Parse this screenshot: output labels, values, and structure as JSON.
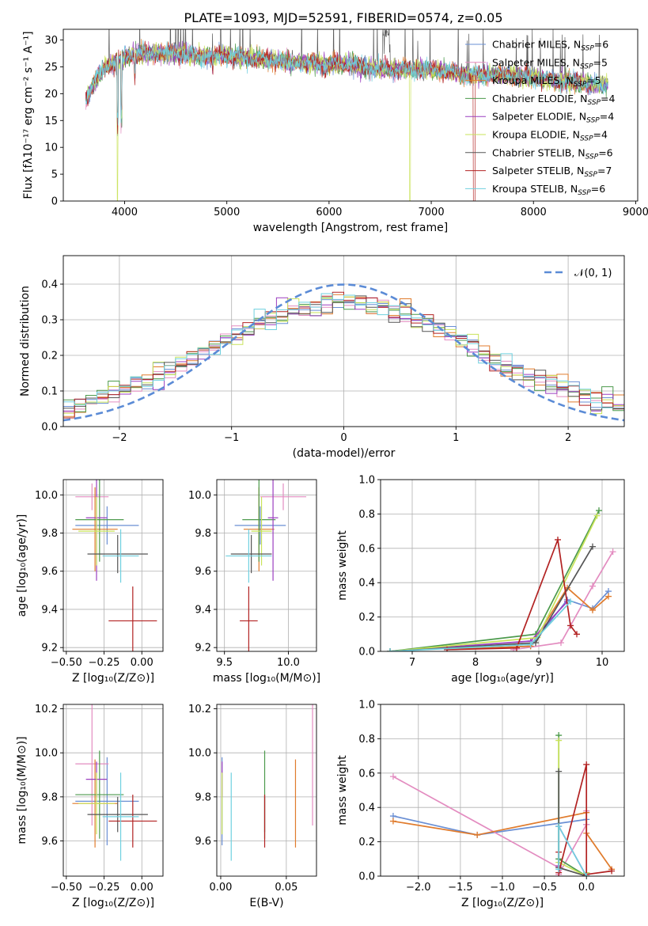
{
  "colors": {
    "chabrier_miles": "#6a8fd4",
    "salpeter_miles": "#e38cc0",
    "kroupa_miles": "#e07b2c",
    "chabrier_elodie": "#4c9a4c",
    "salpeter_elodie": "#9b3fc0",
    "kroupa_elodie": "#c9e35a",
    "chabrier_stelib": "#555555",
    "salpeter_stelib": "#b22222",
    "kroupa_stelib": "#6fd0df",
    "gauss": "#5b8bd6"
  },
  "chart_data": [
    {
      "id": "spectrum",
      "type": "line",
      "title": "PLATE=1093, MJD=52591, FIBERID=0574, z=0.05",
      "xlabel": "wavelength [Angstrom, rest frame]",
      "ylabel": "Flux [fλ10⁻¹⁷ erg cm⁻² s⁻¹ A⁻¹]",
      "xlim": [
        3400,
        9020
      ],
      "ylim": [
        0,
        32
      ],
      "xticks": [
        4000,
        5000,
        6000,
        7000,
        8000,
        9000
      ],
      "yticks": [
        0,
        5,
        10,
        15,
        20,
        25,
        30
      ],
      "legend_position": "upper right",
      "legend": [
        "Chabrier MILES, N_SSP=6",
        "Salpeter MILES, N_SSP=5",
        "Kroupa MILES, N_SSP=5",
        "Chabrier ELODIE, N_SSP=4",
        "Salpeter ELODIE, N_SSP=4",
        "Kroupa ELODIE, N_SSP=4",
        "Chabrier STELIB, N_SSP=6",
        "Salpeter STELIB, N_SSP=7",
        "Kroupa STELIB, N_SSP=6"
      ],
      "continuum": {
        "x": [
          3620,
          3700,
          3800,
          3900,
          4000,
          4200,
          4500,
          4800,
          5000,
          5300,
          5600,
          5900,
          6200,
          6500,
          6800,
          7000,
          7200,
          7400,
          7600,
          7800,
          8000,
          8200,
          8500,
          8800,
          9000
        ],
        "y": [
          19,
          22,
          25,
          25.5,
          27,
          27.5,
          27.5,
          27,
          27,
          26.5,
          26,
          25.5,
          25.5,
          24.5,
          24.5,
          24.5,
          24,
          23.5,
          23.5,
          23.5,
          23,
          22.5,
          22,
          21.5,
          21
        ]
      },
      "dips": [
        3933,
        3968,
        4101,
        4861,
        6563,
        6800,
        7420
      ]
    },
    {
      "id": "residuals",
      "type": "line",
      "xlabel": "(data-model)/error",
      "ylabel": "Normed distribution",
      "xlim": [
        -2.5,
        2.5
      ],
      "ylim": [
        0,
        0.48
      ],
      "xticks": [
        -2,
        -1,
        0,
        1,
        2
      ],
      "yticks": [
        0.0,
        0.1,
        0.2,
        0.3,
        0.4
      ],
      "legend_position": "upper right",
      "gauss_label": "𝒩(0, 1)",
      "bins": 50,
      "overlay": "N(0,1) probability density, dashed"
    },
    {
      "id": "age-vs-Z",
      "type": "scatter",
      "xlabel": "Z [log₁₀(Z/Z⊙)]",
      "ylabel": "age  [log₁₀(age/yr)]",
      "xlim": [
        -0.52,
        0.14
      ],
      "ylim": [
        9.18,
        10.08
      ],
      "xticks": [
        -0.5,
        -0.25,
        0.0
      ],
      "yticks": [
        9.2,
        9.4,
        9.6,
        9.8,
        10.0
      ],
      "points": [
        {
          "x": -0.23,
          "y": 9.84,
          "xerr": 0.21,
          "yerr": 0.1
        },
        {
          "x": -0.33,
          "y": 9.99,
          "xerr": 0.11,
          "yerr": 0.07
        },
        {
          "x": -0.31,
          "y": 9.82,
          "xerr": 0.15,
          "yerr": 0.22
        },
        {
          "x": -0.28,
          "y": 9.87,
          "xerr": 0.16,
          "yerr": 0.22
        },
        {
          "x": -0.3,
          "y": 9.88,
          "xerr": 0.07,
          "yerr": 0.33
        },
        {
          "x": -0.3,
          "y": 9.81,
          "xerr": 0.12,
          "yerr": 0.18
        },
        {
          "x": -0.16,
          "y": 9.69,
          "xerr": 0.2,
          "yerr": 0.1
        },
        {
          "x": -0.06,
          "y": 9.34,
          "xerr": 0.16,
          "yerr": 0.18
        },
        {
          "x": -0.14,
          "y": 9.68,
          "xerr": 0.12,
          "yerr": 0.14
        }
      ]
    },
    {
      "id": "age-vs-mass",
      "type": "scatter",
      "xlabel": "mass [log₁₀(M/M⊙)]",
      "ylabel": "",
      "xlim": [
        9.44,
        10.22
      ],
      "ylim": [
        9.18,
        10.08
      ],
      "xticks": [
        9.5,
        10.0
      ],
      "yticks": [
        9.2,
        9.4,
        9.6,
        9.8,
        10.0
      ],
      "points": [
        {
          "x": 9.78,
          "y": 9.84,
          "xerr": 0.2,
          "yerr": 0.1
        },
        {
          "x": 9.96,
          "y": 9.99,
          "xerr": 0.18,
          "yerr": 0.07
        },
        {
          "x": 9.77,
          "y": 9.82,
          "xerr": 0.12,
          "yerr": 0.22
        },
        {
          "x": 9.77,
          "y": 9.87,
          "xerr": 0.13,
          "yerr": 0.22
        },
        {
          "x": 9.88,
          "y": 9.88,
          "xerr": 0.04,
          "yerr": 0.33
        },
        {
          "x": 9.79,
          "y": 9.81,
          "xerr": 0.08,
          "yerr": 0.18
        },
        {
          "x": 9.71,
          "y": 9.69,
          "xerr": 0.16,
          "yerr": 0.1
        },
        {
          "x": 9.69,
          "y": 9.34,
          "xerr": 0.07,
          "yerr": 0.18
        },
        {
          "x": 9.69,
          "y": 9.68,
          "xerr": 0.18,
          "yerr": 0.14
        }
      ]
    },
    {
      "id": "weight-vs-age",
      "type": "line",
      "xlabel": "age  [log₁₀(age/yr)]",
      "ylabel": "mass weight",
      "xlim": [
        6.5,
        10.35
      ],
      "ylim": [
        0,
        1.0
      ],
      "xticks": [
        7,
        8,
        9,
        10
      ],
      "yticks": [
        0.0,
        0.2,
        0.4,
        0.6,
        0.8,
        1.0
      ],
      "series": [
        {
          "key": "chabrier_miles",
          "x": [
            7.55,
            8.87,
            9.45,
            9.85,
            10.1
          ],
          "y": [
            0.01,
            0.03,
            0.3,
            0.25,
            0.35
          ]
        },
        {
          "key": "salpeter_miles",
          "x": [
            8.6,
            9.35,
            9.85,
            10.17
          ],
          "y": [
            0.01,
            0.05,
            0.38,
            0.58
          ]
        },
        {
          "key": "kroupa_miles",
          "x": [
            7.55,
            8.87,
            9.45,
            9.85,
            10.1
          ],
          "y": [
            0.01,
            0.03,
            0.37,
            0.24,
            0.32
          ]
        },
        {
          "key": "chabrier_elodie",
          "x": [
            6.65,
            8.95,
            9.95
          ],
          "y": [
            0.0,
            0.1,
            0.82
          ]
        },
        {
          "key": "salpeter_elodie",
          "x": [
            6.65,
            8.87,
            9.45
          ],
          "y": [
            0.0,
            0.06,
            0.29
          ]
        },
        {
          "key": "kroupa_elodie",
          "x": [
            6.65,
            8.98,
            9.92
          ],
          "y": [
            0.0,
            0.08,
            0.79
          ]
        },
        {
          "key": "chabrier_stelib",
          "x": [
            6.65,
            8.95,
            9.85
          ],
          "y": [
            0.0,
            0.05,
            0.61
          ]
        },
        {
          "key": "salpeter_stelib",
          "x": [
            7.55,
            8.65,
            9.3,
            9.5,
            9.6
          ],
          "y": [
            0.01,
            0.02,
            0.65,
            0.15,
            0.1
          ]
        },
        {
          "key": "kroupa_stelib",
          "x": [
            6.65,
            8.87,
            9.5
          ],
          "y": [
            0.0,
            0.04,
            0.29
          ]
        }
      ]
    },
    {
      "id": "mass-vs-Z",
      "type": "scatter",
      "xlabel": "Z [log₁₀(Z/Z⊙)]",
      "ylabel": "mass [log₁₀(M/M⊙)]",
      "xlim": [
        -0.52,
        0.14
      ],
      "ylim": [
        9.44,
        10.22
      ],
      "xticks": [
        -0.5,
        -0.25,
        0.0
      ],
      "yticks": [
        9.6,
        9.8,
        10.0,
        10.2
      ],
      "points": [
        {
          "x": -0.23,
          "y": 9.78,
          "xerr": 0.21,
          "yerr": 0.2
        },
        {
          "x": -0.33,
          "y": 9.95,
          "xerr": 0.11,
          "yerr": 0.28
        },
        {
          "x": -0.31,
          "y": 9.77,
          "xerr": 0.15,
          "yerr": 0.2
        },
        {
          "x": -0.28,
          "y": 9.81,
          "xerr": 0.16,
          "yerr": 0.2
        },
        {
          "x": -0.3,
          "y": 9.88,
          "xerr": 0.07,
          "yerr": 0.08
        },
        {
          "x": -0.3,
          "y": 9.77,
          "xerr": 0.12,
          "yerr": 0.14
        },
        {
          "x": -0.16,
          "y": 9.72,
          "xerr": 0.2,
          "yerr": 0.08
        },
        {
          "x": -0.06,
          "y": 9.69,
          "xerr": 0.16,
          "yerr": 0.12
        },
        {
          "x": -0.14,
          "y": 9.71,
          "xerr": 0.12,
          "yerr": 0.2
        }
      ]
    },
    {
      "id": "mass-vs-ebv",
      "type": "scatter",
      "xlabel": "E(B-V)",
      "ylabel": "",
      "xlim": [
        -0.003,
        0.073
      ],
      "ylim": [
        9.44,
        10.22
      ],
      "xticks": [
        0.0,
        0.05
      ],
      "yticks": [
        9.6,
        9.8,
        10.0,
        10.2
      ],
      "points": [
        {
          "x": 0.001,
          "y": 9.78,
          "xerr": 0,
          "yerr": 0.2
        },
        {
          "x": 0.07,
          "y": 9.95,
          "xerr": 0,
          "yerr": 0.28
        },
        {
          "x": 0.057,
          "y": 9.77,
          "xerr": 0,
          "yerr": 0.2
        },
        {
          "x": 0.0335,
          "y": 9.81,
          "xerr": 0,
          "yerr": 0.2
        },
        {
          "x": 0.001,
          "y": 9.88,
          "xerr": 0,
          "yerr": 0.08
        },
        {
          "x": 0.001,
          "y": 9.77,
          "xerr": 0,
          "yerr": 0.14
        },
        {
          "x": 0.0335,
          "y": 9.72,
          "xerr": 0,
          "yerr": 0.08
        },
        {
          "x": 0.0335,
          "y": 9.69,
          "xerr": 0,
          "yerr": 0.12
        },
        {
          "x": 0.008,
          "y": 9.71,
          "xerr": 0,
          "yerr": 0.2
        }
      ]
    },
    {
      "id": "weight-vs-Z",
      "type": "line",
      "xlabel": "Z [log₁₀(Z/Z⊙)]",
      "ylabel": "mass weight",
      "xlim": [
        -2.45,
        0.45
      ],
      "ylim": [
        0,
        1.0
      ],
      "xticks": [
        -2.0,
        -1.5,
        -1.0,
        -0.5,
        0.0
      ],
      "yticks": [
        0.0,
        0.2,
        0.4,
        0.6,
        0.8,
        1.0
      ],
      "series": [
        {
          "key": "chabrier_miles",
          "x": [
            -2.3,
            -1.3,
            0.0,
            0.0
          ],
          "y": [
            0.35,
            0.24,
            0.33,
            0.3
          ]
        },
        {
          "key": "salpeter_miles",
          "x": [
            -2.3,
            -0.33,
            -0.33,
            0.0,
            0.0
          ],
          "y": [
            0.58,
            0.05,
            0.01,
            0.3,
            0.38
          ]
        },
        {
          "key": "kroupa_miles",
          "x": [
            -2.3,
            -1.3,
            0.0,
            0.0,
            0.3
          ],
          "y": [
            0.32,
            0.24,
            0.37,
            0.25,
            0.04
          ]
        },
        {
          "key": "chabrier_elodie",
          "x": [
            -0.33,
            -0.33,
            0.0,
            0.0
          ],
          "y": [
            0.82,
            0.1,
            0.0,
            0.02
          ]
        },
        {
          "key": "salpeter_elodie",
          "x": [
            -0.33,
            -0.33,
            0.0
          ],
          "y": [
            0.06,
            0.29,
            0.0
          ]
        },
        {
          "key": "kroupa_elodie",
          "x": [
            -0.33,
            -0.33,
            0.0,
            0.0
          ],
          "y": [
            0.79,
            0.08,
            0.0,
            0.02
          ]
        },
        {
          "key": "chabrier_stelib",
          "x": [
            -0.33,
            -0.33,
            0.0
          ],
          "y": [
            0.61,
            0.05,
            0.0
          ]
        },
        {
          "key": "salpeter_stelib",
          "x": [
            -0.33,
            -0.33,
            0.0,
            0.0,
            0.3
          ],
          "y": [
            0.14,
            0.02,
            0.65,
            0.01,
            0.03
          ]
        },
        {
          "key": "kroupa_stelib",
          "x": [
            -0.33,
            -0.33,
            0.0
          ],
          "y": [
            0.04,
            0.29,
            0.0
          ]
        }
      ]
    }
  ]
}
